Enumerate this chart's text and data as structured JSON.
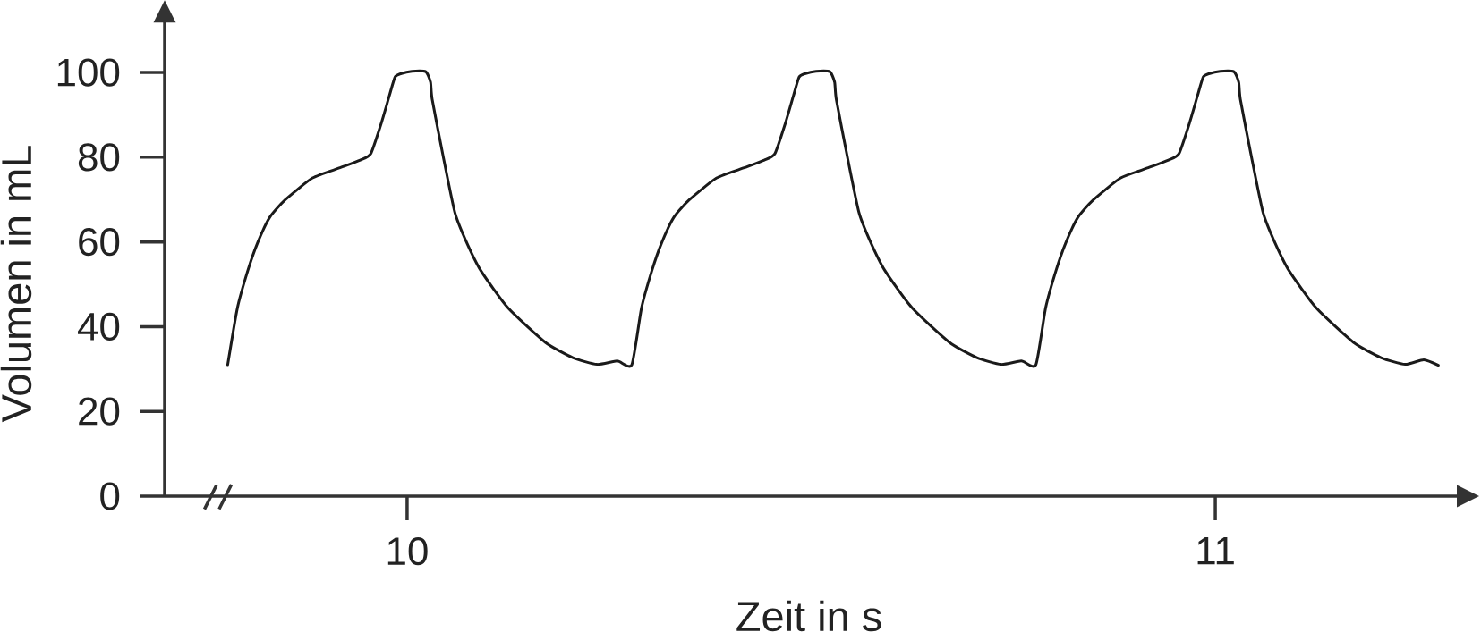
{
  "chart_data": {
    "type": "line",
    "xlabel": "Zeit in s",
    "ylabel": "Volumen in mL",
    "x": [
      9.778,
      9.79,
      9.803,
      9.815,
      9.83,
      9.849,
      9.883,
      9.917,
      9.942,
      9.955,
      9.968,
      9.978,
      9.985,
      9.992,
      10.006,
      10.023,
      10.029,
      10.031,
      10.044,
      10.059,
      10.072,
      10.091,
      10.125,
      10.171,
      10.205,
      10.235,
      10.26,
      10.278,
      10.29,
      10.303,
      10.315,
      10.33,
      10.349,
      10.383,
      10.417,
      10.442,
      10.455,
      10.468,
      10.478,
      10.485,
      10.492,
      10.506,
      10.523,
      10.529,
      10.531,
      10.544,
      10.559,
      10.572,
      10.591,
      10.625,
      10.671,
      10.705,
      10.735,
      10.76,
      10.778,
      10.79,
      10.803,
      10.815,
      10.83,
      10.849,
      10.883,
      10.917,
      10.942,
      10.955,
      10.968,
      10.978,
      10.985,
      10.992,
      11.006,
      11.023,
      11.029,
      11.031,
      11.044,
      11.059,
      11.072,
      11.091,
      11.125,
      11.171,
      11.205,
      11.235,
      11.258,
      11.276
    ],
    "values": [
      31,
      44.4,
      53.3,
      59.8,
      65.8,
      69.9,
      75.1,
      77.5,
      79.3,
      80.8,
      88,
      94.5,
      98.9,
      99.7,
      100.3,
      100.2,
      97.7,
      93.7,
      80.8,
      67,
      60.6,
      53.3,
      44.4,
      36.3,
      32.7,
      31.1,
      31.9,
      31,
      44.4,
      53.3,
      59.8,
      65.8,
      69.9,
      75.1,
      77.5,
      79.3,
      80.8,
      88,
      94.5,
      98.9,
      99.7,
      100.3,
      100.2,
      97.7,
      93.7,
      80.8,
      67,
      60.6,
      53.3,
      44.4,
      36.3,
      32.7,
      31.1,
      31.9,
      31,
      44.4,
      53.3,
      59.8,
      65.8,
      69.9,
      75.1,
      77.5,
      79.3,
      80.8,
      88,
      94.5,
      98.9,
      99.7,
      100.3,
      100.2,
      97.7,
      93.7,
      80.8,
      67,
      60.6,
      53.3,
      44.4,
      36.3,
      32.7,
      31.1,
      32.2,
      30.9
    ],
    "color": "#1a1a1a",
    "line_style": "solid",
    "xlim": [
      9.7,
      11.3
    ],
    "ylim": [
      0,
      112
    ],
    "xticks": [
      10,
      11
    ],
    "yticks": [
      0,
      20,
      40,
      60,
      80,
      100
    ]
  }
}
